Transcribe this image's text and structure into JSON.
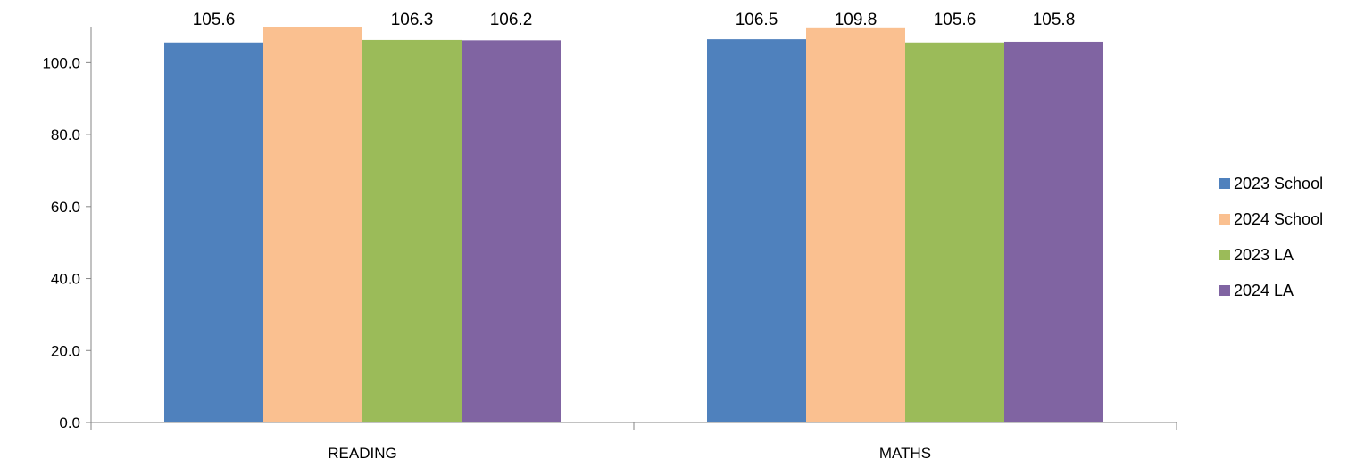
{
  "chart_data": {
    "type": "bar",
    "title": "",
    "xlabel": "",
    "ylabel": "",
    "categories": [
      "READING",
      "MATHS"
    ],
    "series": [
      {
        "name": "2023 School",
        "values": [
          105.6,
          106.5
        ],
        "labels": [
          "105.6",
          "106.5"
        ],
        "color": "#4F81BD"
      },
      {
        "name": "2024 School",
        "values": [
          110.0,
          109.8
        ],
        "labels": [
          "",
          "109.8"
        ],
        "color": "#FAC090"
      },
      {
        "name": "2023 LA",
        "values": [
          106.3,
          105.6
        ],
        "labels": [
          "106.3",
          "105.6"
        ],
        "color": "#9BBB59"
      },
      {
        "name": "2024 LA",
        "values": [
          106.2,
          105.8
        ],
        "labels": [
          "106.2",
          "105.8"
        ],
        "color": "#8064A2"
      }
    ],
    "ylim": [
      0,
      110
    ],
    "yticks": [
      "0.0",
      "20.0",
      "40.0",
      "60.0",
      "80.0",
      "100.0"
    ],
    "grid": false,
    "legend_position": "right"
  }
}
